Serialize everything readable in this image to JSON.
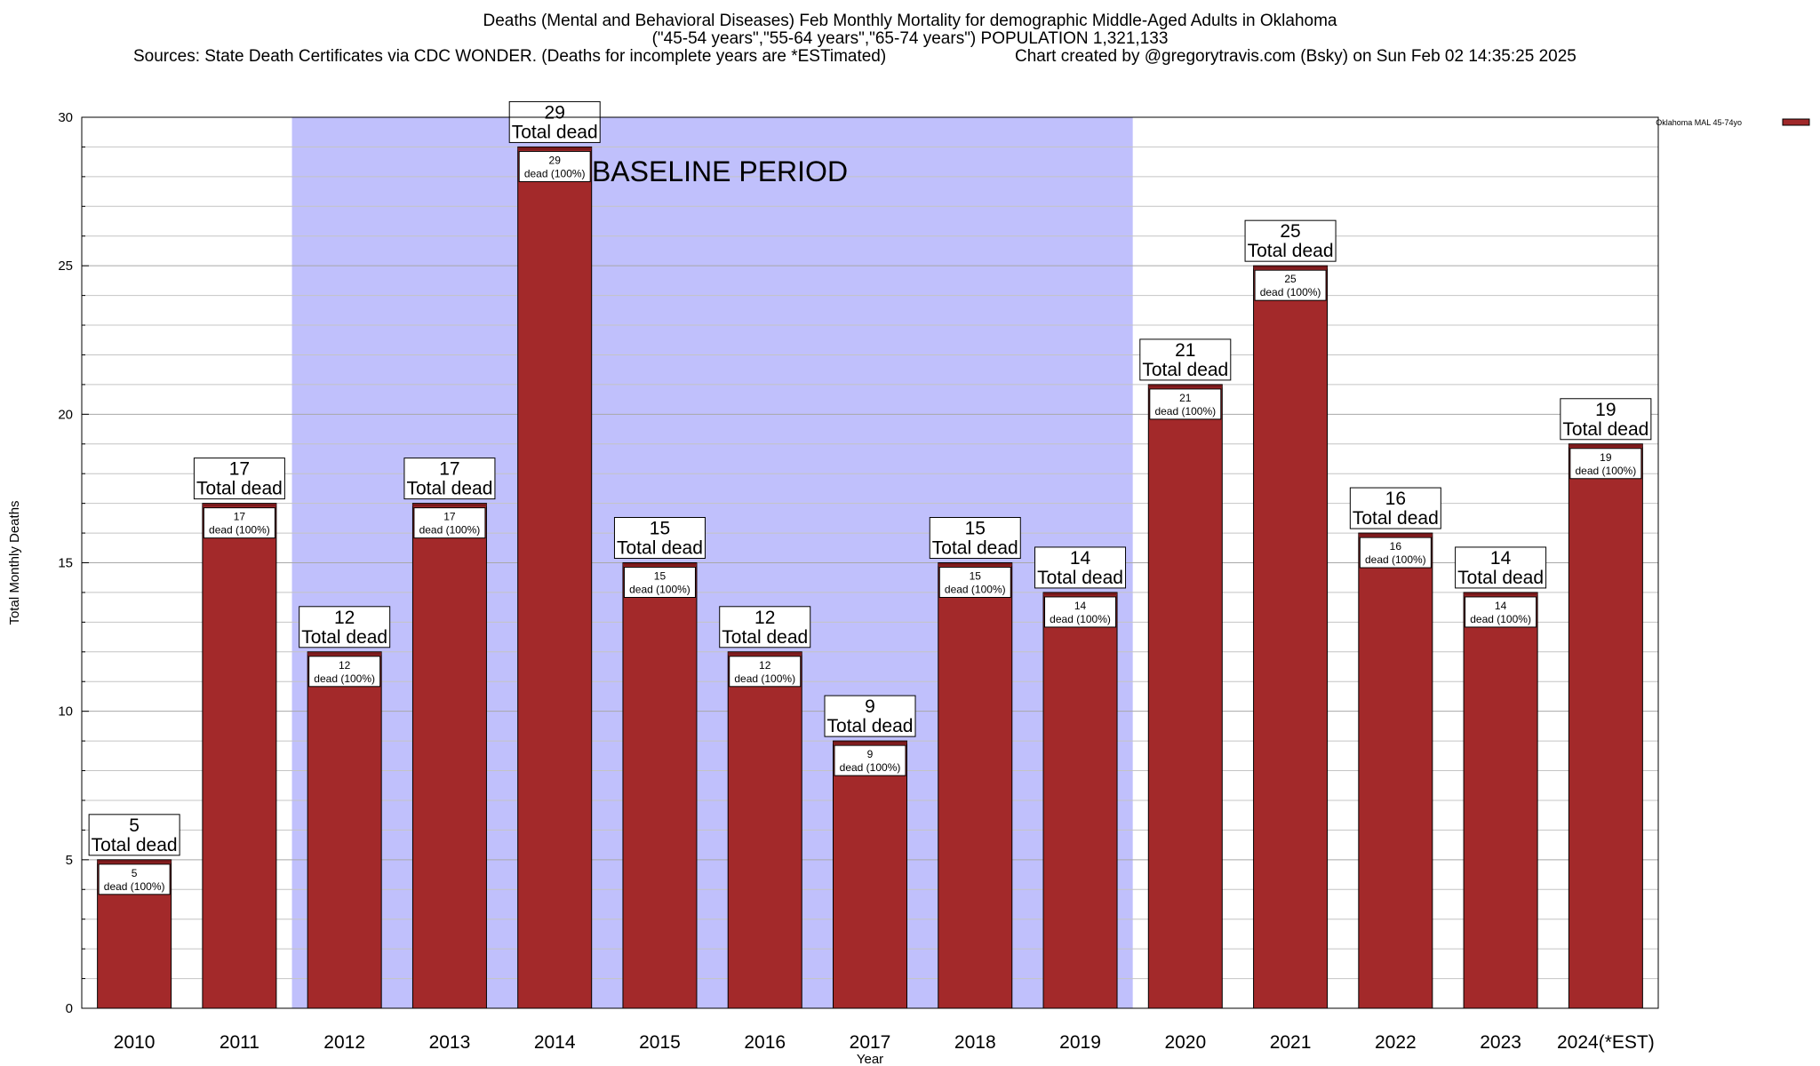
{
  "title": {
    "line1": "Deaths (Mental and Behavioral Diseases) Feb Monthly Mortality for demographic Middle-Aged Adults in Oklahoma",
    "line2": "(\"45-54 years\",\"55-64 years\",\"65-74 years\") POPULATION 1,321,133",
    "sources": "Sources: State Death Certificates via CDC WONDER. (Deaths for incomplete years are *ESTimated)",
    "credit": "Chart created by @gregorytravis.com (Bsky) on Sun Feb 02 14:35:25 2025"
  },
  "chart_data": {
    "type": "bar",
    "xlabel": "Year",
    "ylabel": "Total Monthly Deaths",
    "ylim": [
      0,
      30
    ],
    "yticks": [
      0,
      5,
      10,
      15,
      20,
      25,
      30
    ],
    "minor_grid_step": 1,
    "grid": true,
    "legend": {
      "position": "top-right",
      "label": "Oklahoma MAL 45-74yo",
      "color": "#a0282a"
    },
    "categories": [
      "2010",
      "2011",
      "2012",
      "2013",
      "2014",
      "2015",
      "2016",
      "2017",
      "2018",
      "2019",
      "2020",
      "2021",
      "2022",
      "2023",
      "2024(*EST)"
    ],
    "series": [
      {
        "name": "Oklahoma MAL 45-74yo",
        "values": [
          5,
          17,
          12,
          17,
          29,
          15,
          12,
          9,
          15,
          14,
          21,
          25,
          16,
          14,
          19
        ]
      }
    ],
    "total_label": "Total dead",
    "inner_label_suffix": "dead (100%)",
    "baseline": {
      "label": "BASELINE PERIOD",
      "from": "2012",
      "to": "2019",
      "color": "#c0c0fc"
    },
    "colors": {
      "bar": "#a3292a",
      "bar_top": "#7a1a1c"
    }
  }
}
